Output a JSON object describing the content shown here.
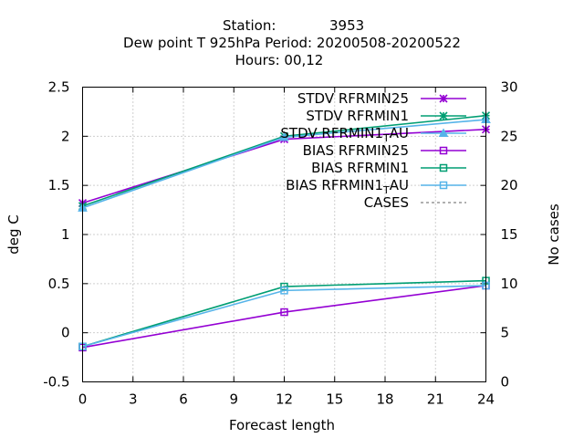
{
  "title": {
    "station_label": "Station:",
    "station_value": "3953",
    "line2": "Dew point T 925hPa   Period: 20200508-20200522",
    "line3": "Hours:  00,12"
  },
  "chart_data": {
    "type": "line",
    "xlabel": "Forecast length",
    "ylabel": "deg C",
    "y2label": "No cases",
    "xlim": [
      0,
      24
    ],
    "ylim": [
      -0.5,
      2.5
    ],
    "y2lim": [
      0,
      30
    ],
    "xticks": [
      "0",
      "3",
      "6",
      "9",
      "12",
      "15",
      "18",
      "21",
      "24"
    ],
    "yticks": [
      "-0.5",
      "0",
      "0.5",
      "1",
      "1.5",
      "2",
      "2.5"
    ],
    "y2ticks": [
      "0",
      "5",
      "10",
      "15",
      "20",
      "25",
      "30"
    ],
    "grid": true,
    "legend_position": "top-right",
    "x": [
      0,
      12,
      24
    ],
    "series": [
      {
        "name": "STDV RFRMIN25",
        "values": [
          1.32,
          1.97,
          2.07
        ],
        "color": "#9400d3",
        "marker": "star",
        "axis": "y"
      },
      {
        "name": "STDV RFRMIN1",
        "values": [
          1.29,
          2.0,
          2.21
        ],
        "color": "#009e73",
        "marker": "star",
        "axis": "y"
      },
      {
        "name": "STDV RFRMIN1_T AU",
        "label_main": "STDV RFRMIN1",
        "label_sub": "T",
        "label_tail": "AU",
        "values": [
          1.27,
          1.99,
          2.17
        ],
        "color": "#56b4e9",
        "marker": "triangle",
        "axis": "y"
      },
      {
        "name": "BIAS RFRMIN25",
        "values": [
          -0.15,
          0.21,
          0.48
        ],
        "color": "#9400d3",
        "marker": "square",
        "axis": "y"
      },
      {
        "name": "BIAS RFRMIN1",
        "values": [
          -0.14,
          0.47,
          0.53
        ],
        "color": "#009e73",
        "marker": "square",
        "axis": "y"
      },
      {
        "name": "BIAS RFRMIN1_T AU",
        "label_main": "BIAS RFRMIN1",
        "label_sub": "T",
        "label_tail": "AU",
        "values": [
          -0.14,
          0.43,
          0.48
        ],
        "color": "#56b4e9",
        "marker": "square",
        "axis": "y"
      },
      {
        "name": "CASES",
        "values": [
          30,
          30,
          30
        ],
        "color": "#606060",
        "marker": "none",
        "axis": "y2",
        "dashed": true
      }
    ]
  }
}
